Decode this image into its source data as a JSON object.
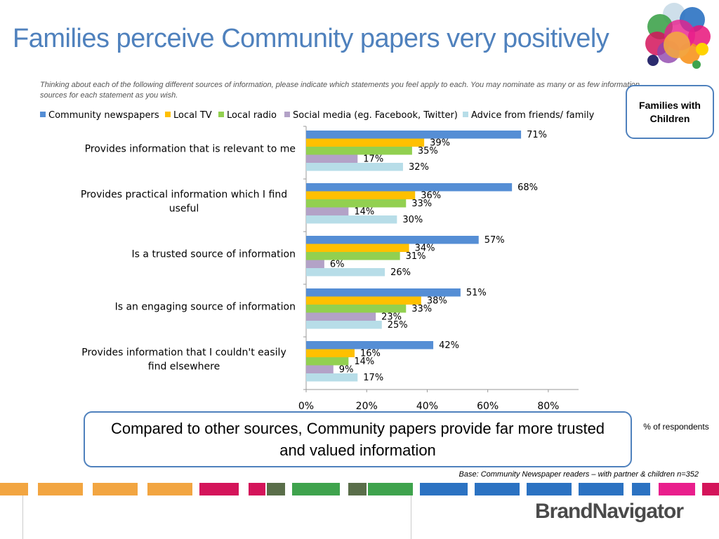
{
  "slide": {
    "title": "Families perceive Community papers very positively",
    "question": "Thinking about each of the following different sources of information, please indicate which statements you feel apply to each.  You may nominate as many or as few information sources for each statement as you wish.",
    "segment_label": "Families with Children",
    "callout": "Compared to other sources, Community papers provide far more trusted and valued information",
    "pct_note": "% of respondents",
    "base_note": "Base: Community Newspaper readers – with partner & children n=352",
    "brand": "BrandNavigator"
  },
  "colors": {
    "accent": "#4f81bd",
    "community": "#558ed5",
    "tv": "#ffc000",
    "radio": "#92d050",
    "social": "#b3a2c7",
    "friends": "#b7dde8"
  },
  "chart_data": {
    "type": "bar",
    "orientation": "horizontal",
    "categories": [
      "Provides information that is relevant to me",
      "Provides practical information which I find useful",
      "Is a trusted source of information",
      "Is an engaging source of information",
      "Provides information that I couldn't easily find elsewhere"
    ],
    "series": [
      {
        "name": "Community newspapers",
        "color": "#558ed5",
        "values": [
          71,
          68,
          57,
          51,
          42
        ]
      },
      {
        "name": "Local TV",
        "color": "#ffc000",
        "values": [
          39,
          36,
          34,
          38,
          16
        ]
      },
      {
        "name": "Local radio",
        "color": "#92d050",
        "values": [
          35,
          33,
          31,
          33,
          14
        ]
      },
      {
        "name": "Social media (eg. Facebook, Twitter)",
        "color": "#b3a2c7",
        "values": [
          17,
          14,
          6,
          23,
          9
        ]
      },
      {
        "name": "Advice from friends/ family",
        "color": "#b7dde8",
        "values": [
          32,
          30,
          26,
          25,
          17
        ]
      }
    ],
    "xlim": [
      0,
      90
    ],
    "xticks": [
      "0%",
      "20%",
      "40%",
      "60%",
      "80%"
    ],
    "xtick_values": [
      0,
      20,
      40,
      60,
      80
    ],
    "value_suffix": "%",
    "legend_position": "top",
    "grid": false
  }
}
